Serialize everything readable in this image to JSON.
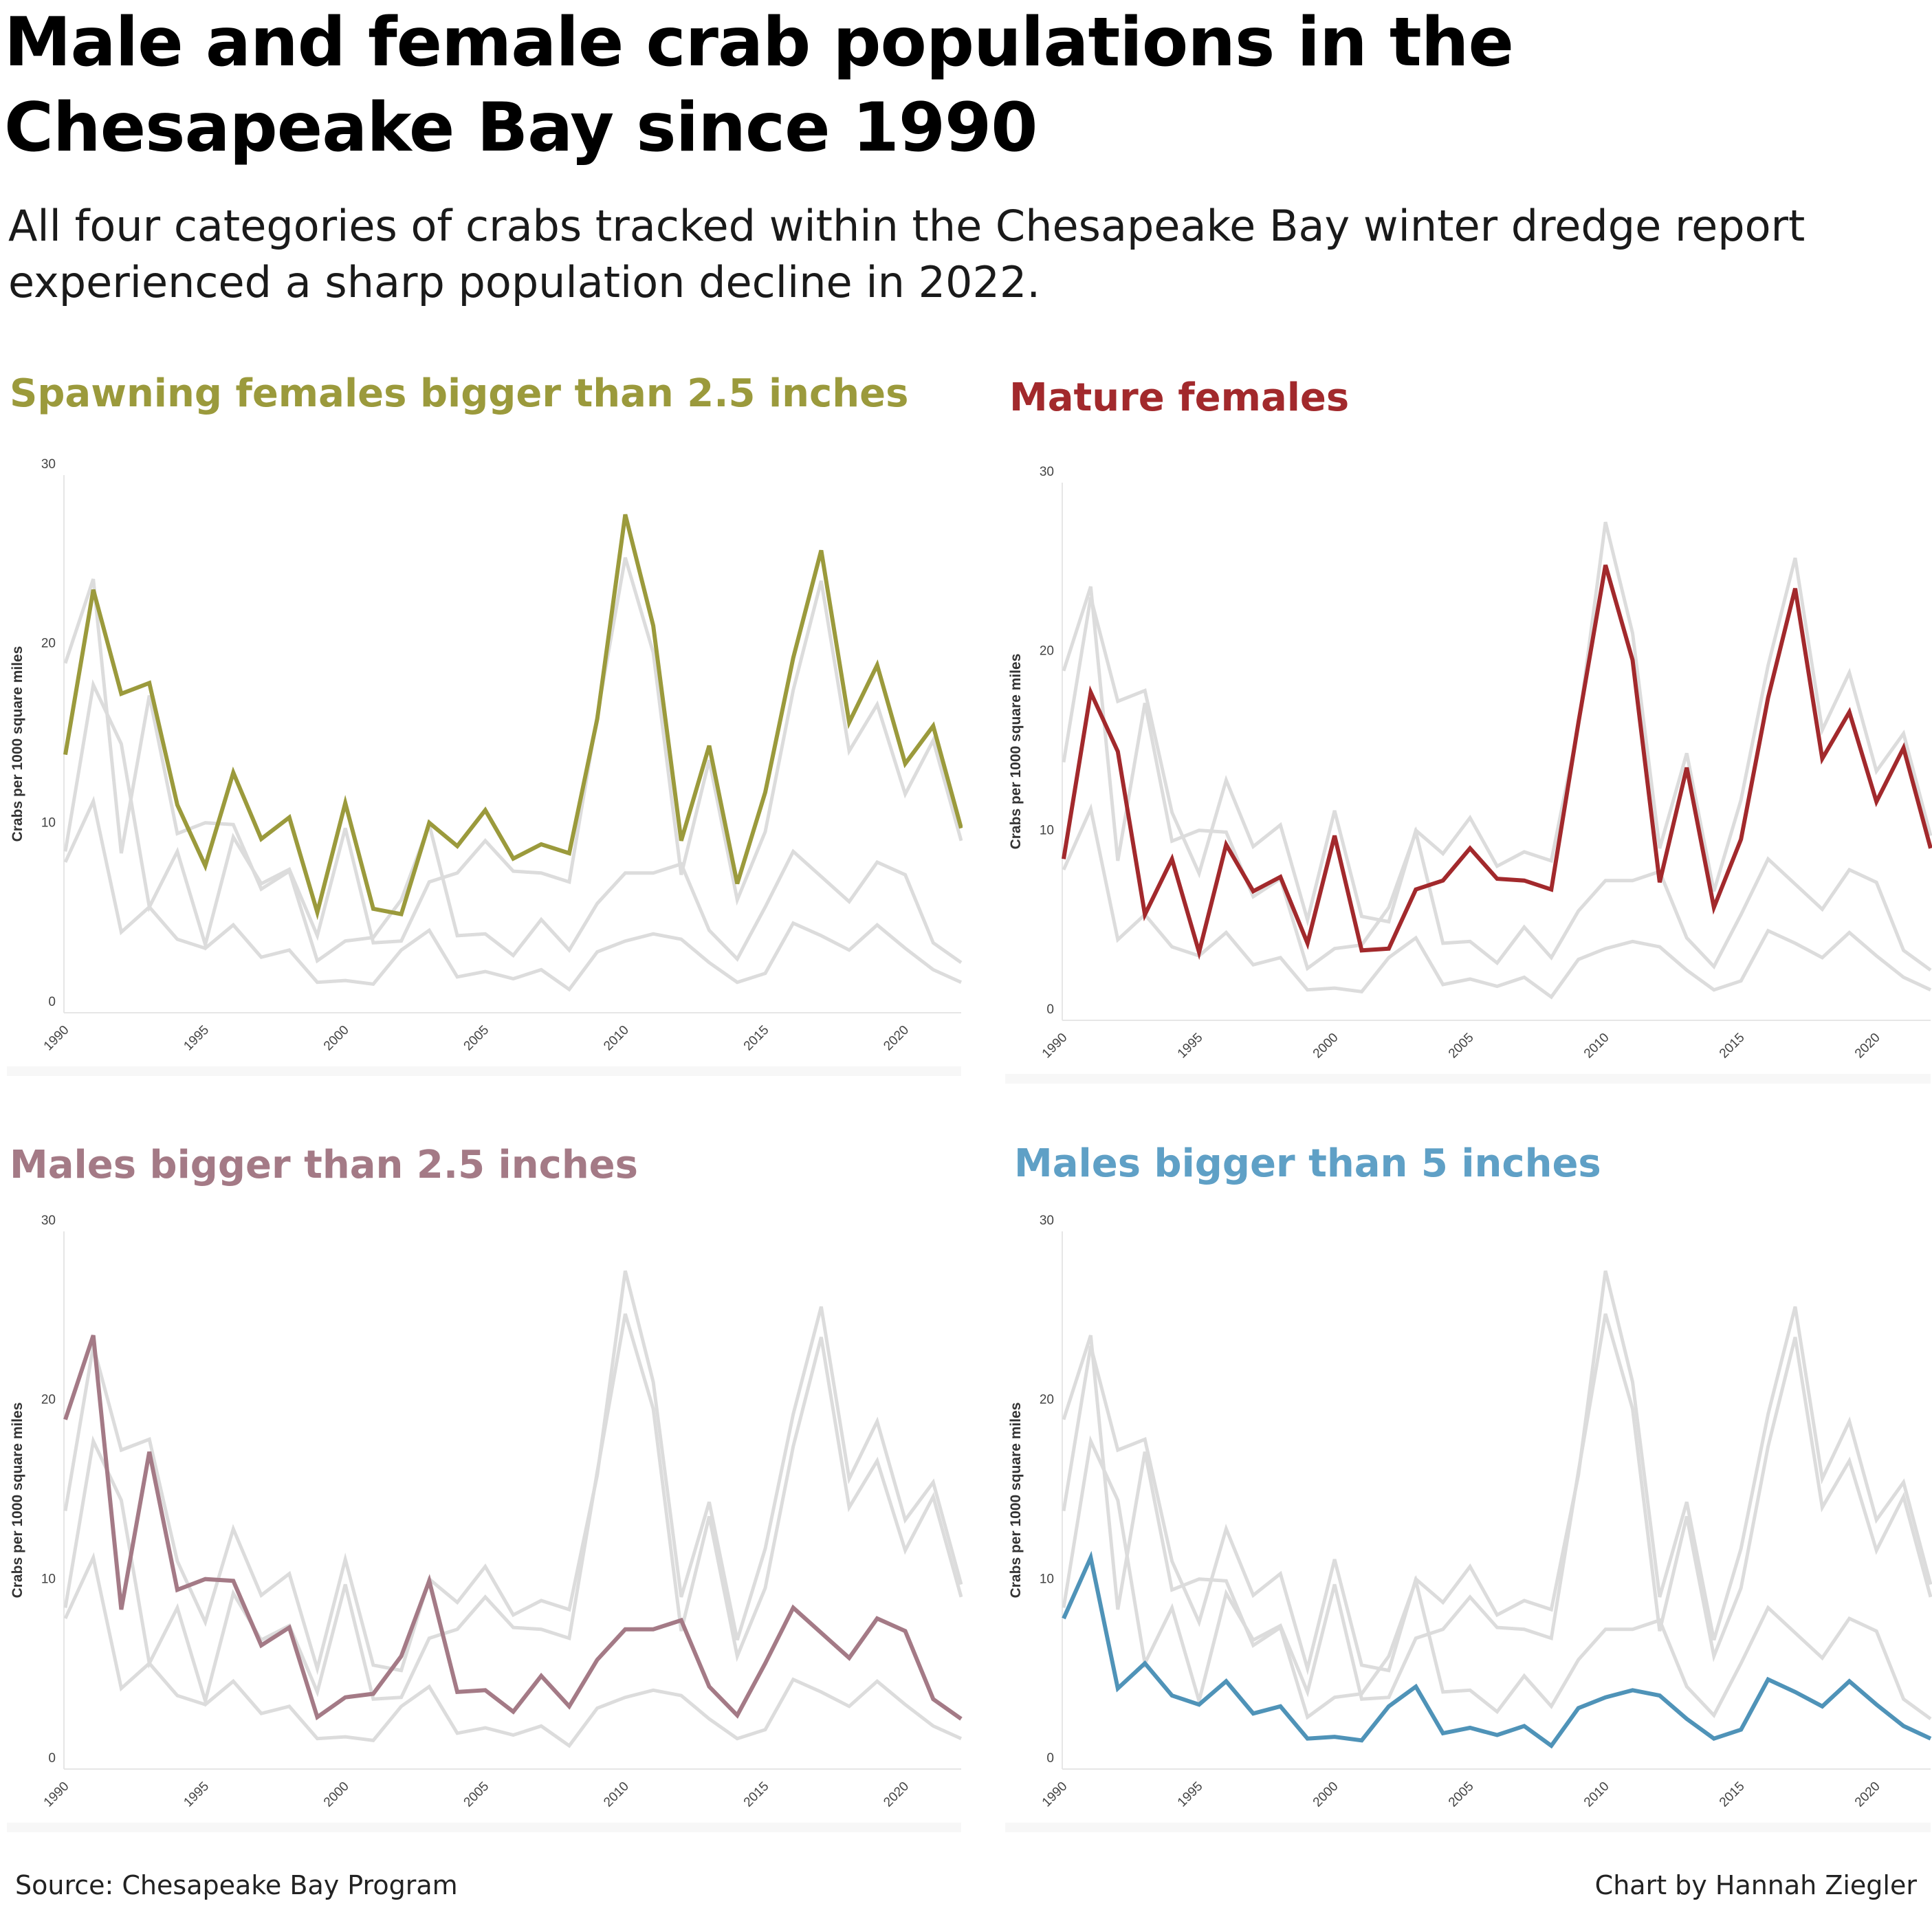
{
  "title": "Male and female crab populations in the Chesapeake Bay since 1990",
  "subtitle": "All four categories of crabs tracked within the Chesapeake Bay winter dredge report experienced a sharp population decline in 2022.",
  "footer": {
    "source": "Source: Chesapeake Bay Program",
    "credit": "Chart by Hannah Ziegler"
  },
  "colors": {
    "spawning": "#9b9a3c",
    "mature": "#a2292c",
    "males25": "#a47a86",
    "males5": "#4f93b8",
    "context": "#dcdcdc",
    "axis": "#e6e6e6",
    "tick_text": "#444444"
  },
  "chart_data": [
    {
      "id": "spawning",
      "type": "line",
      "title": "Spawning females bigger than 2.5 inches",
      "ylabel": "Crabs per 1000 square miles",
      "xlabel": "",
      "ylim": [
        0,
        30
      ],
      "yticks": [
        0,
        10,
        20,
        30
      ],
      "xlim": [
        1990,
        2022
      ],
      "xticks": [
        1990,
        1995,
        2000,
        2005,
        2010,
        2015,
        2020
      ],
      "highlight": "spawning",
      "color": "#9b9a3c"
    },
    {
      "id": "mature",
      "type": "line",
      "title": "Mature females",
      "ylabel": "Crabs per 1000 square miles",
      "xlabel": "",
      "ylim": [
        0,
        30
      ],
      "yticks": [
        0,
        10,
        20,
        30
      ],
      "xlim": [
        1990,
        2022
      ],
      "xticks": [
        1990,
        1995,
        2000,
        2005,
        2010,
        2015,
        2020
      ],
      "highlight": "mature",
      "color": "#a2292c"
    },
    {
      "id": "males25",
      "type": "line",
      "title": "Males bigger than 2.5 inches",
      "ylabel": "Crabs per 1000 square miles",
      "xlabel": "",
      "ylim": [
        0,
        30
      ],
      "yticks": [
        0,
        10,
        20,
        30
      ],
      "xlim": [
        1990,
        2022
      ],
      "xticks": [
        1990,
        1995,
        2000,
        2005,
        2010,
        2015,
        2020
      ],
      "highlight": "males25",
      "color": "#a47a86"
    },
    {
      "id": "males5",
      "type": "line",
      "title": "Males bigger than 5 inches",
      "ylabel": "Crabs per 1000 square miles",
      "xlabel": "",
      "ylim": [
        0,
        30
      ],
      "yticks": [
        0,
        10,
        20,
        30
      ],
      "xlim": [
        1990,
        2022
      ],
      "xticks": [
        1990,
        1995,
        2000,
        2005,
        2010,
        2015,
        2020
      ],
      "highlight": "males5",
      "color": "#4f93b8"
    }
  ],
  "series_data": {
    "years": [
      1990,
      1991,
      1992,
      1993,
      1994,
      1995,
      1996,
      1997,
      1998,
      1999,
      2000,
      2001,
      2002,
      2003,
      2004,
      2005,
      2006,
      2007,
      2008,
      2009,
      2010,
      2011,
      2012,
      2013,
      2014,
      2015,
      2016,
      2017,
      2018,
      2019,
      2020,
      2021,
      2022
    ],
    "spawning": [
      14.4,
      23.6,
      17.8,
      18.4,
      11.6,
      8.2,
      13.4,
      9.7,
      10.9,
      5.6,
      11.7,
      5.8,
      5.5,
      10.6,
      9.3,
      11.3,
      8.6,
      9.4,
      8.9,
      16.4,
      27.8,
      21.6,
      9.6,
      14.9,
      7.2,
      12.3,
      19.8,
      25.8,
      16.2,
      19.4,
      13.9,
      16.0,
      10.3
    ],
    "mature": [
      9.0,
      18.3,
      15.0,
      5.9,
      9.0,
      3.8,
      9.8,
      7.2,
      8.0,
      4.3,
      10.3,
      3.9,
      4.0,
      7.3,
      7.8,
      9.6,
      7.9,
      7.8,
      7.3,
      16.6,
      25.4,
      20.1,
      7.7,
      14.1,
      6.3,
      10.1,
      18.0,
      24.1,
      14.6,
      17.2,
      12.2,
      15.2,
      9.6
    ],
    "males25": [
      19.5,
      24.2,
      8.9,
      17.7,
      10.0,
      10.6,
      10.5,
      6.9,
      7.9,
      2.9,
      4.0,
      4.2,
      6.3,
      10.5,
      4.3,
      4.4,
      3.2,
      5.2,
      3.5,
      6.1,
      7.8,
      7.8,
      8.3,
      4.6,
      3.0,
      5.9,
      9.0,
      7.6,
      6.2,
      8.4,
      7.7,
      3.9,
      2.8
    ],
    "males5": [
      8.4,
      11.8,
      4.5,
      5.9,
      4.1,
      3.6,
      4.9,
      3.1,
      3.5,
      1.7,
      1.8,
      1.6,
      3.5,
      4.6,
      2.0,
      2.3,
      1.9,
      2.4,
      1.3,
      3.4,
      4.0,
      4.4,
      4.1,
      2.8,
      1.7,
      2.2,
      5.0,
      4.3,
      3.5,
      4.9,
      3.6,
      2.4,
      1.7
    ]
  }
}
